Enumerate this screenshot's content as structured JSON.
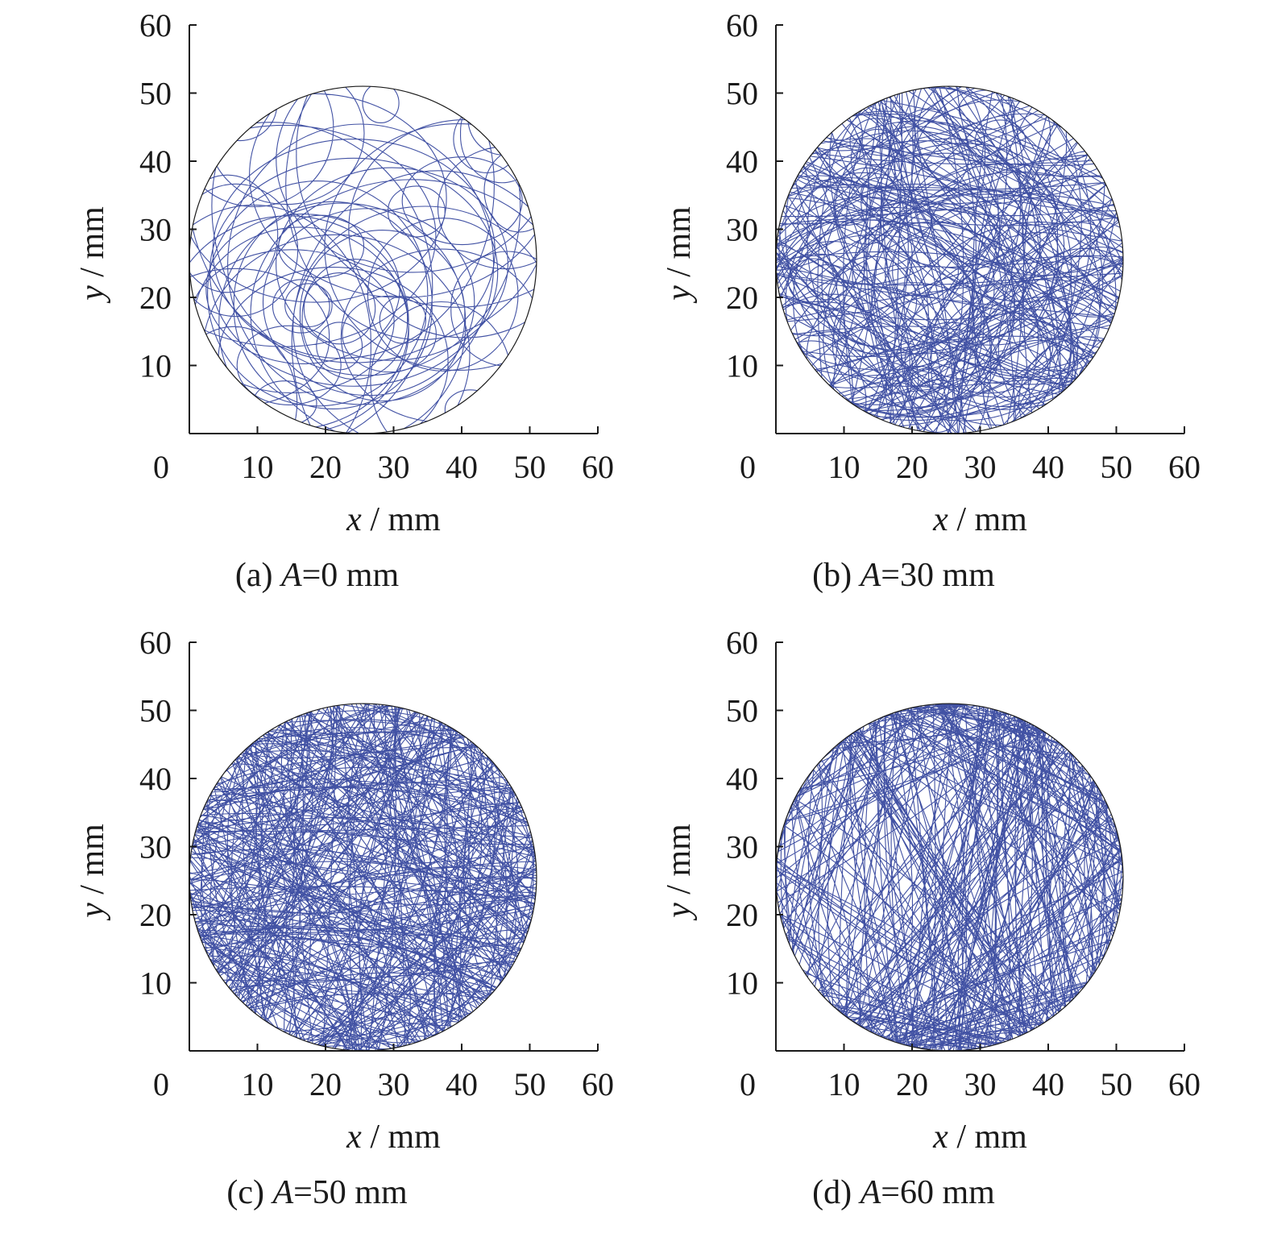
{
  "colors": {
    "trajectory": "#2e3f9a",
    "axis": "#1a1a1a",
    "boundary": "#1a1a1a"
  },
  "chart_data": [
    {
      "type": "line",
      "panel_id": "a",
      "caption_prefix": "(a) ",
      "caption_var": "A",
      "caption_suffix": "=0 mm",
      "amplitude_mm": 0,
      "xlabel_var": "x",
      "xlabel_unit": " / mm",
      "ylabel_var": "y",
      "ylabel_unit": " / mm",
      "xlim": [
        0,
        60
      ],
      "ylim": [
        0,
        60
      ],
      "x_tick_labels": [
        "0",
        "10",
        "20",
        "30",
        "40",
        "50",
        "60"
      ],
      "y_tick_labels": [
        "10",
        "20",
        "30",
        "40",
        "50",
        "60"
      ],
      "boundary_circle": {
        "cx": 25.5,
        "cy": 25.5,
        "r": 25.5
      },
      "trajectory": {
        "segments": 60,
        "pattern": "loops"
      }
    },
    {
      "type": "line",
      "panel_id": "b",
      "caption_prefix": "(b) ",
      "caption_var": "A",
      "caption_suffix": "=30 mm",
      "amplitude_mm": 30,
      "xlabel_var": "x",
      "xlabel_unit": " / mm",
      "ylabel_var": "y",
      "ylabel_unit": " / mm",
      "xlim": [
        0,
        60
      ],
      "ylim": [
        0,
        60
      ],
      "x_tick_labels": [
        "0",
        "10",
        "20",
        "30",
        "40",
        "50",
        "60"
      ],
      "y_tick_labels": [
        "10",
        "20",
        "30",
        "40",
        "50",
        "60"
      ],
      "boundary_circle": {
        "cx": 25.5,
        "cy": 25.5,
        "r": 25.5
      },
      "trajectory": {
        "segments": 230,
        "pattern": "mixed"
      }
    },
    {
      "type": "line",
      "panel_id": "c",
      "caption_prefix": "(c) ",
      "caption_var": "A",
      "caption_suffix": "=50 mm",
      "amplitude_mm": 50,
      "xlabel_var": "x",
      "xlabel_unit": " / mm",
      "ylabel_var": "y",
      "ylabel_unit": " / mm",
      "xlim": [
        0,
        60
      ],
      "ylim": [
        0,
        60
      ],
      "x_tick_labels": [
        "0",
        "10",
        "20",
        "30",
        "40",
        "50",
        "60"
      ],
      "y_tick_labels": [
        "10",
        "20",
        "30",
        "40",
        "50",
        "60"
      ],
      "boundary_circle": {
        "cx": 25.5,
        "cy": 25.5,
        "r": 25.5
      },
      "trajectory": {
        "segments": 330,
        "pattern": "dense"
      }
    },
    {
      "type": "line",
      "panel_id": "d",
      "caption_prefix": "(d) ",
      "caption_var": "A",
      "caption_suffix": "=60 mm",
      "amplitude_mm": 60,
      "xlabel_var": "x",
      "xlabel_unit": " / mm",
      "ylabel_var": "y",
      "ylabel_unit": " / mm",
      "xlim": [
        0,
        60
      ],
      "ylim": [
        0,
        60
      ],
      "x_tick_labels": [
        "0",
        "10",
        "20",
        "30",
        "40",
        "50",
        "60"
      ],
      "y_tick_labels": [
        "10",
        "20",
        "30",
        "40",
        "50",
        "60"
      ],
      "boundary_circle": {
        "cx": 25.5,
        "cy": 25.5,
        "r": 25.5
      },
      "trajectory": {
        "segments": 420,
        "pattern": "vertical"
      }
    }
  ]
}
